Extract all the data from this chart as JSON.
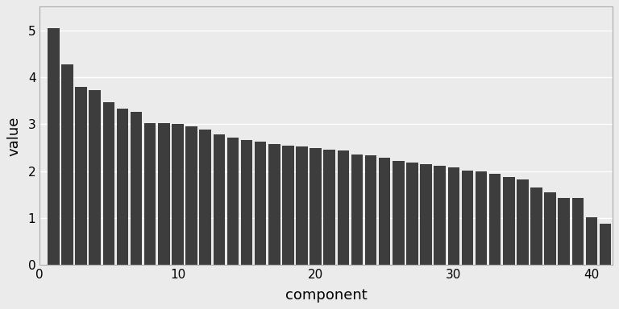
{
  "values": [
    5.05,
    4.28,
    3.8,
    3.73,
    3.47,
    3.33,
    3.27,
    3.03,
    3.03,
    3.0,
    2.95,
    2.88,
    2.78,
    2.72,
    2.67,
    2.62,
    2.57,
    2.55,
    2.52,
    2.5,
    2.46,
    2.44,
    2.35,
    2.33,
    2.28,
    2.22,
    2.18,
    2.15,
    2.12,
    2.08,
    2.02,
    1.99,
    1.95,
    1.88,
    1.82,
    1.65,
    1.55,
    1.43,
    1.43,
    1.02,
    0.88
  ],
  "bar_color": "#3d3d3d",
  "xlabel": "component",
  "ylabel": "value",
  "ylim": [
    0,
    5.5
  ],
  "xlim": [
    0,
    41.5
  ],
  "yticks": [
    0,
    1,
    2,
    3,
    4,
    5
  ],
  "xticks": [
    0,
    10,
    20,
    30,
    40
  ],
  "background_color": "#ebebeb",
  "plot_bg_color": "#ebebeb",
  "grid_color": "#ffffff",
  "figsize": [
    7.68,
    3.84
  ],
  "dpi": 100,
  "xlabel_fontsize": 13,
  "ylabel_fontsize": 13,
  "tick_fontsize": 11
}
